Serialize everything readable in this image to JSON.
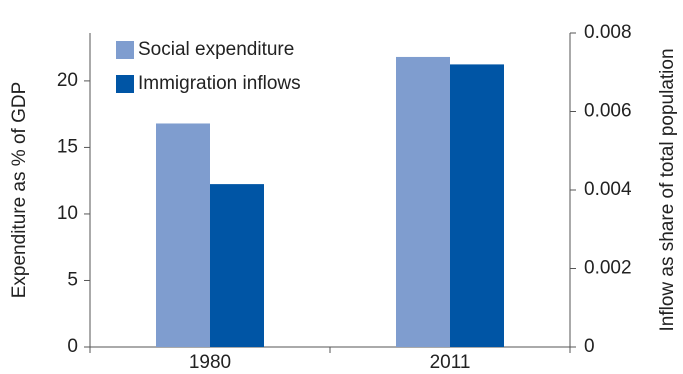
{
  "chart_data": {
    "type": "bar",
    "categories": [
      "1980",
      "2011"
    ],
    "ylabel": "Expenditure as % of GDP",
    "y2label": "Inflow as share of total population",
    "ylim": [
      0,
      23.6
    ],
    "yticks": [
      0,
      5,
      10,
      15,
      20
    ],
    "y2lim": [
      0,
      0.008
    ],
    "y2ticks": [
      0,
      0.002,
      0.004,
      0.006,
      0.008
    ],
    "legend": "upper left",
    "series": [
      {
        "name": "Social expenditure",
        "color": "#7f9dcf",
        "values": [
          16.8,
          21.8
        ]
      },
      {
        "name": "Immigration inflows",
        "color": "#0055a5",
        "values": [
          0.00415,
          0.0072
        ],
        "axis": "y2"
      }
    ]
  }
}
